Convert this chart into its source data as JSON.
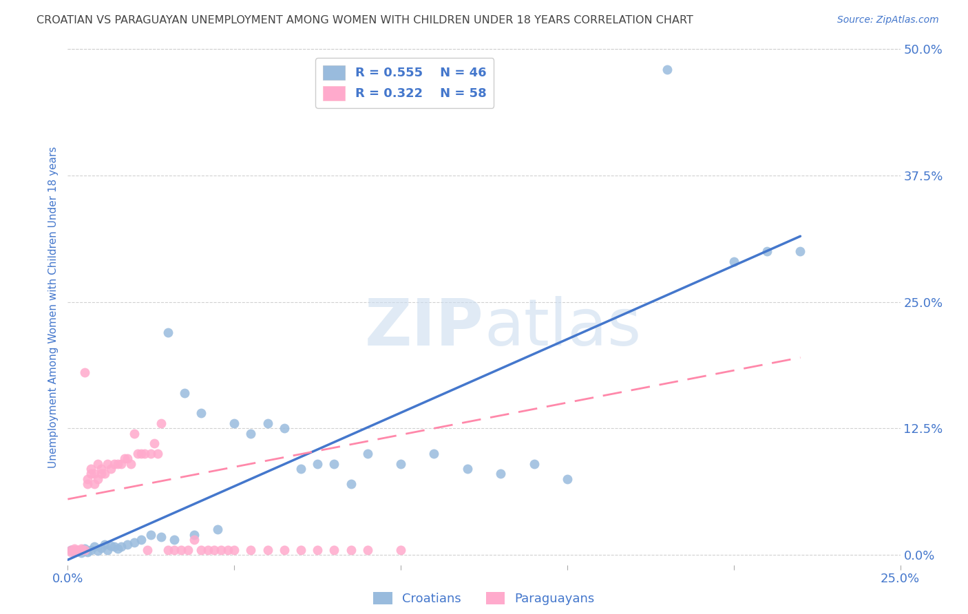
{
  "title": "CROATIAN VS PARAGUAYAN UNEMPLOYMENT AMONG WOMEN WITH CHILDREN UNDER 18 YEARS CORRELATION CHART",
  "source": "Source: ZipAtlas.com",
  "ylabel": "Unemployment Among Women with Children Under 18 years",
  "watermark_zip": "ZIP",
  "watermark_atlas": "atlas",
  "xlim": [
    0.0,
    0.25
  ],
  "ylim": [
    -0.01,
    0.5
  ],
  "ytick_vals": [
    0.0,
    0.125,
    0.25,
    0.375,
    0.5
  ],
  "ytick_labels": [
    "0.0%",
    "12.5%",
    "25.0%",
    "37.5%",
    "50.0%"
  ],
  "croatian_R": 0.555,
  "croatian_N": 46,
  "paraguayan_R": 0.322,
  "paraguayan_N": 58,
  "blue_scatter_color": "#99BBDD",
  "pink_scatter_color": "#FFAACC",
  "blue_line_color": "#4477CC",
  "pink_line_color": "#FF88AA",
  "axis_color": "#4477CC",
  "title_color": "#444444",
  "grid_color": "#CCCCCC",
  "background_color": "#FFFFFF",
  "croatian_x": [
    0.001,
    0.002,
    0.003,
    0.004,
    0.005,
    0.006,
    0.007,
    0.008,
    0.009,
    0.01,
    0.011,
    0.012,
    0.013,
    0.014,
    0.015,
    0.016,
    0.018,
    0.02,
    0.022,
    0.025,
    0.028,
    0.03,
    0.032,
    0.035,
    0.038,
    0.04,
    0.045,
    0.05,
    0.055,
    0.06,
    0.065,
    0.07,
    0.075,
    0.08,
    0.085,
    0.09,
    0.1,
    0.11,
    0.12,
    0.13,
    0.14,
    0.15,
    0.18,
    0.2,
    0.21,
    0.22
  ],
  "croatian_y": [
    0.005,
    0.003,
    0.004,
    0.002,
    0.006,
    0.003,
    0.005,
    0.008,
    0.004,
    0.007,
    0.01,
    0.005,
    0.009,
    0.008,
    0.006,
    0.008,
    0.01,
    0.012,
    0.015,
    0.02,
    0.018,
    0.22,
    0.015,
    0.16,
    0.02,
    0.14,
    0.025,
    0.13,
    0.12,
    0.13,
    0.125,
    0.085,
    0.09,
    0.09,
    0.07,
    0.1,
    0.09,
    0.1,
    0.085,
    0.08,
    0.09,
    0.075,
    0.48,
    0.29,
    0.3,
    0.3
  ],
  "paraguayan_x": [
    0.001,
    0.001,
    0.002,
    0.002,
    0.003,
    0.003,
    0.004,
    0.004,
    0.005,
    0.005,
    0.006,
    0.006,
    0.007,
    0.007,
    0.008,
    0.008,
    0.009,
    0.009,
    0.01,
    0.01,
    0.011,
    0.012,
    0.013,
    0.014,
    0.015,
    0.016,
    0.017,
    0.018,
    0.019,
    0.02,
    0.021,
    0.022,
    0.023,
    0.024,
    0.025,
    0.026,
    0.027,
    0.028,
    0.03,
    0.032,
    0.034,
    0.036,
    0.038,
    0.04,
    0.042,
    0.044,
    0.046,
    0.048,
    0.05,
    0.055,
    0.06,
    0.065,
    0.07,
    0.075,
    0.08,
    0.085,
    0.09,
    0.1
  ],
  "paraguayan_y": [
    0.005,
    0.003,
    0.006,
    0.005,
    0.005,
    0.004,
    0.005,
    0.006,
    0.18,
    0.005,
    0.07,
    0.075,
    0.08,
    0.085,
    0.07,
    0.08,
    0.09,
    0.075,
    0.08,
    0.085,
    0.08,
    0.09,
    0.085,
    0.09,
    0.09,
    0.09,
    0.095,
    0.095,
    0.09,
    0.12,
    0.1,
    0.1,
    0.1,
    0.005,
    0.1,
    0.11,
    0.1,
    0.13,
    0.005,
    0.005,
    0.005,
    0.005,
    0.015,
    0.005,
    0.005,
    0.005,
    0.005,
    0.005,
    0.005,
    0.005,
    0.005,
    0.005,
    0.005,
    0.005,
    0.005,
    0.005,
    0.005,
    0.005
  ],
  "blue_trend_x": [
    0.0,
    0.22
  ],
  "blue_trend_y": [
    -0.005,
    0.315
  ],
  "pink_trend_x": [
    0.0,
    0.22
  ],
  "pink_trend_y": [
    0.055,
    0.195
  ]
}
